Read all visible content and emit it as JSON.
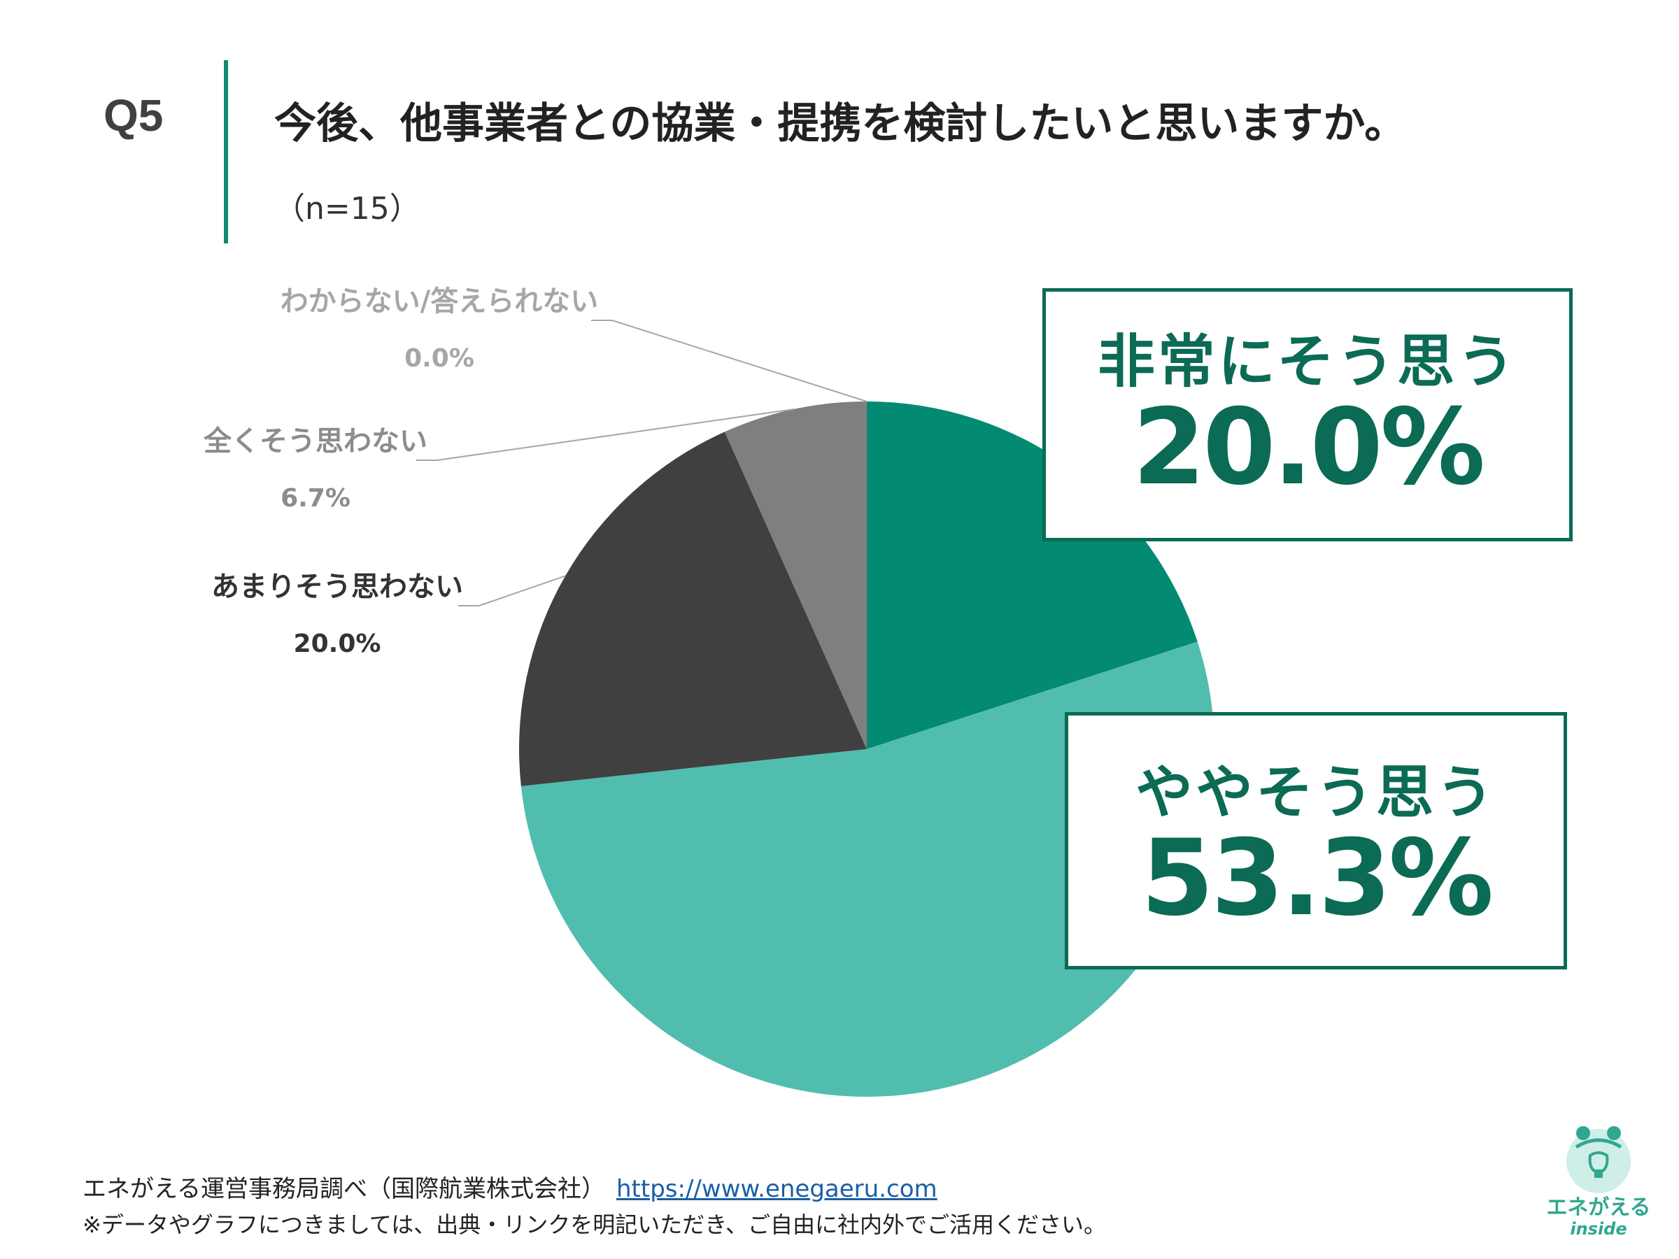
{
  "header": {
    "qnum": "Q5",
    "question": "今後、他事業者との協業・提携を検討したいと思いますか。",
    "sample": "（n=15）"
  },
  "chart_data": {
    "type": "pie",
    "title": "今後、他事業者との協業・提携を検討したいと思いますか。",
    "n": 15,
    "slices": [
      {
        "label": "非常にそう思う",
        "value": 20.0,
        "value_label": "20.0%",
        "color": "#038a72"
      },
      {
        "label": "ややそう思う",
        "value": 53.3,
        "value_label": "53.3%",
        "color": "#50bdaf"
      },
      {
        "label": "あまりそう思わない",
        "value": 20.0,
        "value_label": "20.0%",
        "color": "#404040"
      },
      {
        "label": "全くそう思わない",
        "value": 6.7,
        "value_label": "6.7%",
        "color": "#7f7f7f"
      },
      {
        "label": "わからない/答えられない",
        "value": 0.0,
        "value_label": "0.0%",
        "color": "#bfbfbf"
      }
    ],
    "label_colors": [
      "#038a72",
      "#50bdaf",
      "#333333",
      "#8c8c8c",
      "#a6a6a6"
    ]
  },
  "footer": {
    "source": "エネがえる運営事務局調べ（国際航業株式会社）",
    "link": "https://www.enegaeru.com",
    "note": "※データやグラフにつきましては、出典・リンクを明記いただき、ご自由に社内外でご活用ください。"
  },
  "logo": {
    "text": "エネがえる",
    "sub": "inside"
  }
}
